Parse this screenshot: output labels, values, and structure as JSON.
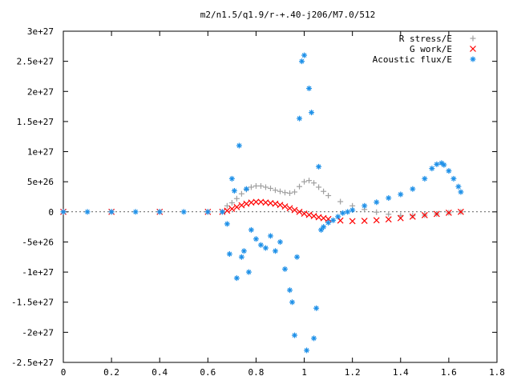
{
  "chart_data": {
    "type": "scatter",
    "title": "m2/n1.5/q1.9/r-+.40-j206/M7.0/512",
    "xlabel": "",
    "ylabel": "",
    "xlim": [
      0,
      1.8
    ],
    "ylim": [
      -2.5e+27,
      3e+27
    ],
    "x_ticks": [
      0,
      0.2,
      0.4,
      0.6,
      0.8,
      1,
      1.2,
      1.4,
      1.6,
      1.8
    ],
    "x_tick_labels": [
      "0",
      "0.2",
      "0.4",
      "0.6",
      "0.8",
      "1",
      "1.2",
      "1.4",
      "1.6",
      "1.8"
    ],
    "y_ticks": [
      -2.5e+27,
      -2e+27,
      -1.5e+27,
      -1e+27,
      -5e+26,
      0,
      5e+26,
      1e+27,
      1.5e+27,
      2e+27,
      2.5e+27,
      3e+27
    ],
    "y_tick_labels": [
      "-2.5e+27",
      "-2e+27",
      "-1.5e+27",
      "-1e+27",
      "-5e+26",
      "0",
      "5e+26",
      "1e+27",
      "1.5e+27",
      "2e+27",
      "2.5e+27",
      "3e+27"
    ],
    "grid": false,
    "legend_position": "top-right",
    "series": [
      {
        "name": "R stress/E",
        "marker": "+",
        "color": "#a0a0a0",
        "points": [
          [
            0,
            0
          ],
          [
            0.2,
            0
          ],
          [
            0.4,
            0
          ],
          [
            0.6,
            0
          ],
          [
            0.66,
            0
          ],
          [
            0.68,
            1e+26
          ],
          [
            0.7,
            1.5e+26
          ],
          [
            0.72,
            2.2e+26
          ],
          [
            0.74,
            3e+26
          ],
          [
            0.76,
            3.7e+26
          ],
          [
            0.78,
            4.1e+26
          ],
          [
            0.8,
            4.3e+26
          ],
          [
            0.82,
            4.3e+26
          ],
          [
            0.84,
            4.1e+26
          ],
          [
            0.86,
            3.9e+26
          ],
          [
            0.88,
            3.6e+26
          ],
          [
            0.9,
            3.4e+26
          ],
          [
            0.92,
            3.2e+26
          ],
          [
            0.94,
            3.1e+26
          ],
          [
            0.96,
            3.3e+26
          ],
          [
            0.98,
            4.2e+26
          ],
          [
            1.0,
            5e+26
          ],
          [
            1.02,
            5.2e+26
          ],
          [
            1.04,
            4.8e+26
          ],
          [
            1.06,
            4.1e+26
          ],
          [
            1.08,
            3.4e+26
          ],
          [
            1.1,
            2.7e+26
          ],
          [
            1.15,
            1.7e+26
          ],
          [
            1.2,
            1e+26
          ],
          [
            1.25,
            4e+25
          ],
          [
            1.3,
            -5e+24
          ],
          [
            1.35,
            -4e+25
          ],
          [
            1.4,
            -6e+25
          ],
          [
            1.45,
            -6.5e+25
          ],
          [
            1.5,
            -5.5e+25
          ],
          [
            1.55,
            -3.5e+25
          ],
          [
            1.6,
            -1.5e+25
          ],
          [
            1.65,
            0
          ]
        ]
      },
      {
        "name": "G work/E",
        "marker": "x",
        "color": "#ff0000",
        "points": [
          [
            0,
            0
          ],
          [
            0.2,
            0
          ],
          [
            0.4,
            0
          ],
          [
            0.6,
            0
          ],
          [
            0.66,
            0
          ],
          [
            0.68,
            2e+25
          ],
          [
            0.7,
            5e+25
          ],
          [
            0.72,
            8e+25
          ],
          [
            0.74,
            1.1e+26
          ],
          [
            0.76,
            1.35e+26
          ],
          [
            0.78,
            1.55e+26
          ],
          [
            0.8,
            1.65e+26
          ],
          [
            0.82,
            1.65e+26
          ],
          [
            0.84,
            1.55e+26
          ],
          [
            0.86,
            1.45e+26
          ],
          [
            0.88,
            1.35e+26
          ],
          [
            0.9,
            1.15e+26
          ],
          [
            0.92,
            9e+25
          ],
          [
            0.94,
            6e+25
          ],
          [
            0.96,
            3e+25
          ],
          [
            0.98,
            0
          ],
          [
            1.0,
            -3e+25
          ],
          [
            1.02,
            -5e+25
          ],
          [
            1.04,
            -7e+25
          ],
          [
            1.06,
            -9e+25
          ],
          [
            1.08,
            -1.05e+26
          ],
          [
            1.1,
            -1.2e+26
          ],
          [
            1.15,
            -1.45e+26
          ],
          [
            1.2,
            -1.55e+26
          ],
          [
            1.25,
            -1.5e+26
          ],
          [
            1.3,
            -1.4e+26
          ],
          [
            1.35,
            -1.25e+26
          ],
          [
            1.4,
            -1.05e+26
          ],
          [
            1.45,
            -8e+25
          ],
          [
            1.5,
            -5.5e+25
          ],
          [
            1.55,
            -3.5e+25
          ],
          [
            1.6,
            -1.5e+25
          ],
          [
            1.65,
            0
          ]
        ]
      },
      {
        "name": "Acoustic flux/E",
        "marker": "*",
        "color": "#1e90e8",
        "points": [
          [
            0,
            0
          ],
          [
            0.1,
            0
          ],
          [
            0.2,
            0
          ],
          [
            0.3,
            0
          ],
          [
            0.4,
            0
          ],
          [
            0.5,
            0
          ],
          [
            0.6,
            0
          ],
          [
            0.66,
            0
          ],
          [
            0.68,
            -2e+26
          ],
          [
            0.69,
            -7e+26
          ],
          [
            0.7,
            5.5e+26
          ],
          [
            0.71,
            3.5e+26
          ],
          [
            0.72,
            -1.1e+27
          ],
          [
            0.73,
            1.1e+27
          ],
          [
            0.74,
            -7.5e+26
          ],
          [
            0.75,
            -6.5e+26
          ],
          [
            0.76,
            3.8e+26
          ],
          [
            0.77,
            -1e+27
          ],
          [
            0.78,
            -3e+26
          ],
          [
            0.8,
            -4.5e+26
          ],
          [
            0.82,
            -5.5e+26
          ],
          [
            0.84,
            -6e+26
          ],
          [
            0.86,
            -4e+26
          ],
          [
            0.88,
            -6.5e+26
          ],
          [
            0.9,
            -5e+26
          ],
          [
            0.92,
            -9.5e+26
          ],
          [
            0.94,
            -1.3e+27
          ],
          [
            0.95,
            -1.5e+27
          ],
          [
            0.96,
            -2.05e+27
          ],
          [
            0.97,
            -7.5e+26
          ],
          [
            0.98,
            1.55e+27
          ],
          [
            0.99,
            2.5e+27
          ],
          [
            1.0,
            2.6e+27
          ],
          [
            1.01,
            -2.3e+27
          ],
          [
            1.02,
            2.05e+27
          ],
          [
            1.03,
            1.65e+27
          ],
          [
            1.04,
            -2.1e+27
          ],
          [
            1.05,
            -1.6e+27
          ],
          [
            1.06,
            7.5e+26
          ],
          [
            1.07,
            -3e+26
          ],
          [
            1.08,
            -2.5e+26
          ],
          [
            1.1,
            -1.8e+26
          ],
          [
            1.12,
            -1.4e+26
          ],
          [
            1.14,
            -8e+25
          ],
          [
            1.16,
            -2e+25
          ],
          [
            1.18,
            0
          ],
          [
            1.2,
            3e+25
          ],
          [
            1.25,
            1e+26
          ],
          [
            1.3,
            1.6e+26
          ],
          [
            1.35,
            2.3e+26
          ],
          [
            1.4,
            2.9e+26
          ],
          [
            1.45,
            3.8e+26
          ],
          [
            1.5,
            5.5e+26
          ],
          [
            1.53,
            7.2e+26
          ],
          [
            1.55,
            7.9e+26
          ],
          [
            1.57,
            8.1e+26
          ],
          [
            1.58,
            7.8e+26
          ],
          [
            1.6,
            6.8e+26
          ],
          [
            1.62,
            5.5e+26
          ],
          [
            1.64,
            4.2e+26
          ],
          [
            1.65,
            3.3e+26
          ]
        ]
      }
    ]
  }
}
